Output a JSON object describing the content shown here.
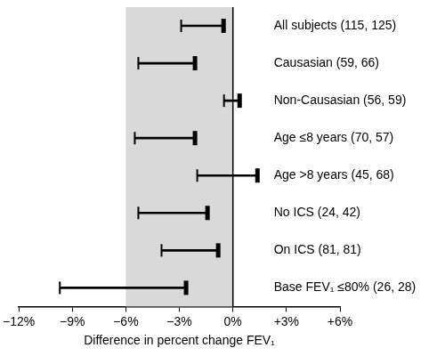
{
  "chart_data": {
    "type": "interval",
    "orientation": "horizontal",
    "categories": [
      "All subjects (115, 125)",
      "Causasian (59, 66)",
      "Non-Causasian (56, 59)",
      "Age ≤8 years (70, 57)",
      "Age >8 years (45, 68)",
      "No ICS (24, 42)",
      "On ICS (81, 81)",
      "Base FEV₁ ≤80% (26, 28)"
    ],
    "low": [
      -2.9,
      -5.3,
      -0.5,
      -5.5,
      -2.0,
      -5.3,
      -4.0,
      -9.7
    ],
    "high": [
      -0.5,
      -2.1,
      0.4,
      -2.1,
      1.4,
      -1.4,
      -0.8,
      -2.6
    ],
    "color": "#000000",
    "x_label": "Difference in percent change FEV₁",
    "xlim": [
      -12,
      6
    ],
    "xticks": [
      {
        "value": -12,
        "label": "−12%"
      },
      {
        "value": -9,
        "label": "−9%"
      },
      {
        "value": -6,
        "label": "−6%"
      },
      {
        "value": -3,
        "label": "−3%"
      },
      {
        "value": 0,
        "label": "0%"
      },
      {
        "value": 3,
        "label": "+3%"
      },
      {
        "value": 6,
        "label": "+6%"
      }
    ],
    "shaded_range": [
      -6,
      0
    ],
    "reference_line": 0,
    "grid": false
  }
}
